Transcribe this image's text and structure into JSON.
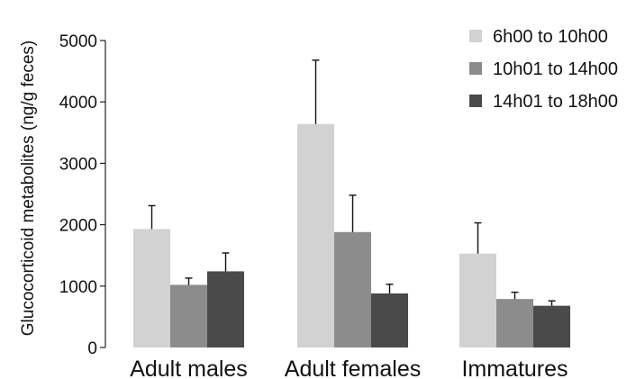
{
  "chart_data": {
    "type": "bar",
    "categories": [
      "Adult males",
      "Adult females",
      "Immatures"
    ],
    "series": [
      {
        "name": "6h00 to 10h00",
        "color": "#d2d2d2",
        "values": [
          1930,
          3640,
          1530
        ],
        "errors": [
          380,
          1040,
          500
        ]
      },
      {
        "name": "10h01 to 14h00",
        "color": "#8c8c8c",
        "values": [
          1020,
          1880,
          790
        ],
        "errors": [
          110,
          600,
          110
        ]
      },
      {
        "name": "14h01 to 18h00",
        "color": "#4a4a4a",
        "values": [
          1240,
          880,
          680
        ],
        "errors": [
          300,
          150,
          80
        ]
      }
    ],
    "ylabel": "Glucocorticoid metabolites (ng/g feces)",
    "xlabel": "",
    "ylim": [
      0,
      5000
    ],
    "yticks": [
      0,
      1000,
      2000,
      3000,
      4000,
      5000
    ],
    "grid": false,
    "legend_position": "top-right"
  }
}
